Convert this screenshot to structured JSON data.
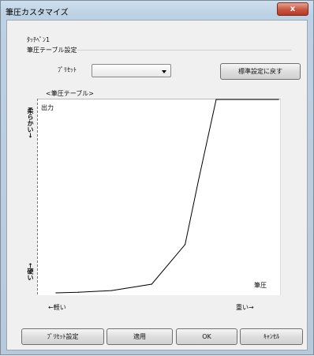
{
  "window": {
    "title": "筆圧カスタマイズ",
    "close_glyph": "x"
  },
  "device": {
    "name": "ﾀｯﾁﾍﾟﾝ1"
  },
  "section": {
    "title": "筆圧テーブル設定"
  },
  "preset": {
    "label": "ﾌﾟﾘｾｯﾄ",
    "selected": ""
  },
  "buttons": {
    "reset_default": "標準設定に戻す",
    "preset_settings": "ﾌﾟﾘｾｯﾄ設定",
    "apply": "適用",
    "ok": "OK",
    "cancel": "ｷｬﾝｾﾙ"
  },
  "graph": {
    "caption": "<筆圧テーブル>",
    "output_label": "出力",
    "pressure_label": "筆圧",
    "y_top_label": "柔らかい→",
    "y_bottom_label": "←硬い",
    "x_left_label": "←軽い",
    "x_right_label": "重い→"
  },
  "chart_data": {
    "type": "line",
    "x": [
      0,
      10,
      25,
      43,
      58,
      64,
      72,
      100
    ],
    "y": [
      0,
      0.3,
      1.2,
      4.5,
      25,
      58,
      100,
      100
    ],
    "xlim": [
      0,
      100
    ],
    "ylim": [
      0,
      100
    ]
  }
}
